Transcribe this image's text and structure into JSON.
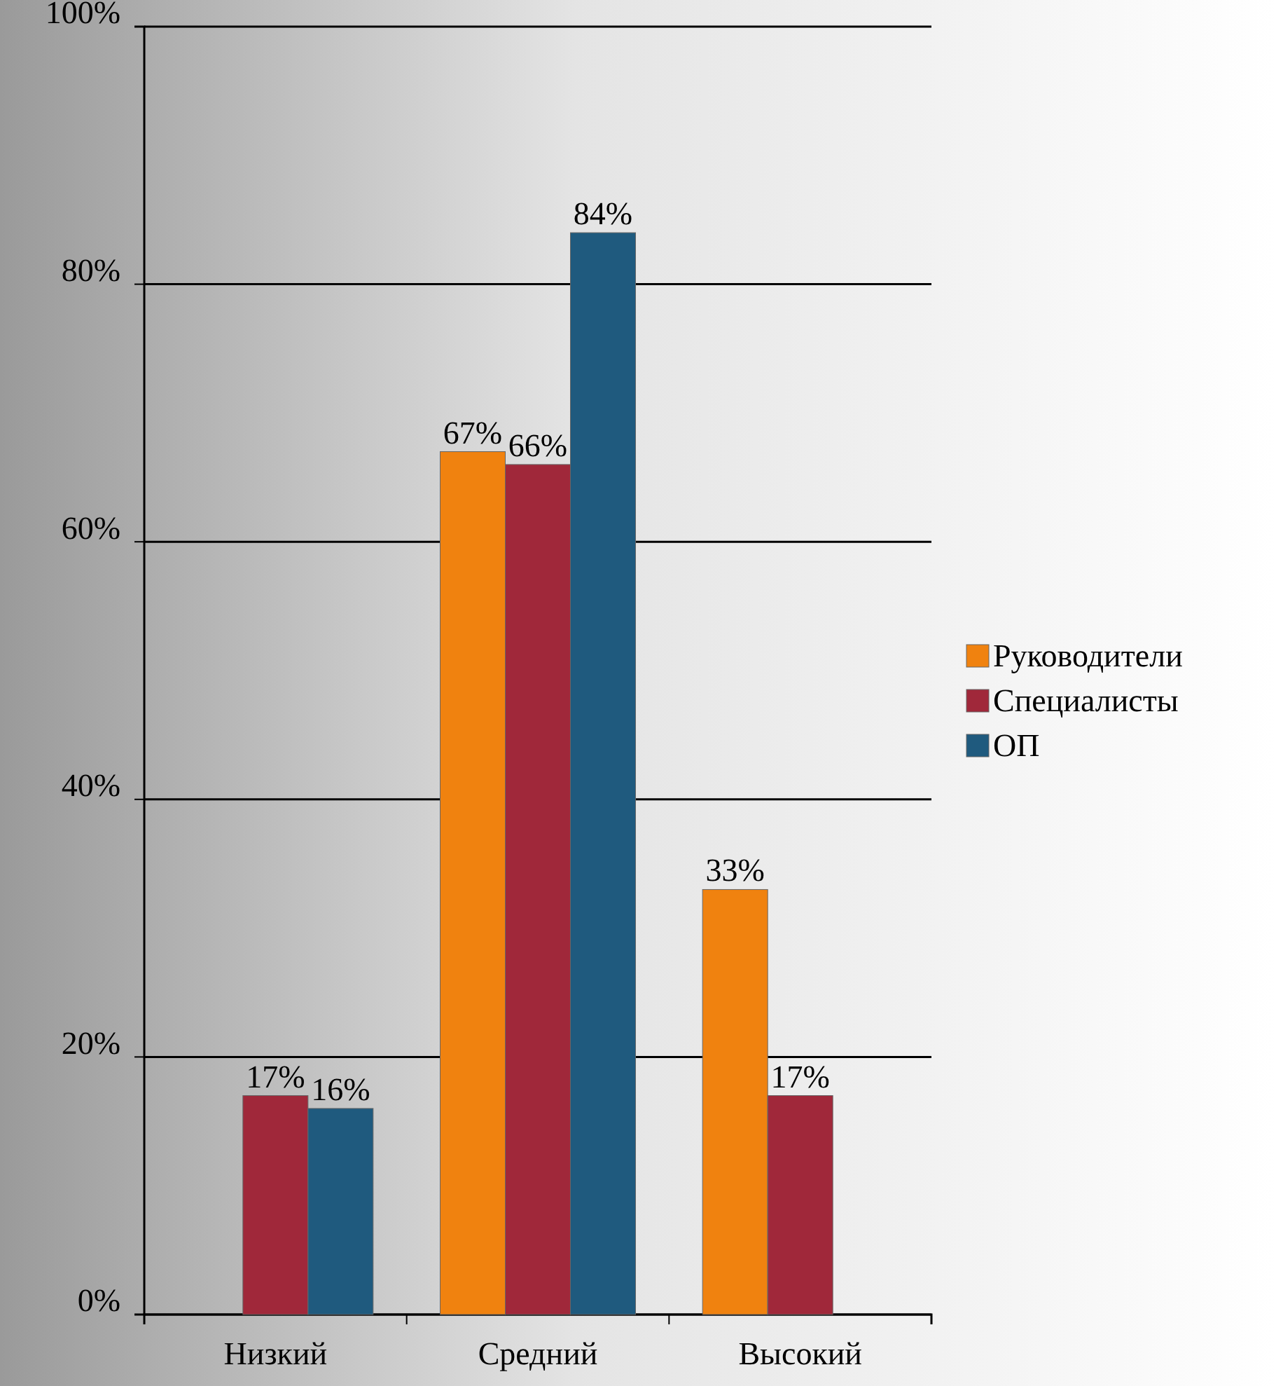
{
  "chart_data": {
    "type": "bar",
    "categories": [
      "Низкий",
      "Средний",
      "Высокий"
    ],
    "series": [
      {
        "name": "Руководители",
        "color": "#f0820f",
        "values": [
          null,
          67,
          33
        ],
        "value_labels": [
          null,
          "67%",
          "33%"
        ]
      },
      {
        "name": "Специалисты",
        "color": "#a0283a",
        "values": [
          17,
          66,
          17
        ],
        "value_labels": [
          "17%",
          "66%",
          "17%"
        ]
      },
      {
        "name": "ОП",
        "color": "#1f5a7e",
        "values": [
          16,
          84,
          null
        ],
        "value_labels": [
          "16%",
          "84%",
          null
        ]
      }
    ],
    "ylim": [
      0,
      100
    ],
    "yticks": [
      {
        "value": 0,
        "label": "0%"
      },
      {
        "value": 20,
        "label": "20%"
      },
      {
        "value": 40,
        "label": "40%"
      },
      {
        "value": 60,
        "label": "60%"
      },
      {
        "value": 80,
        "label": "80%"
      },
      {
        "value": 100,
        "label": "100%"
      }
    ],
    "grid": "y",
    "legend": "right"
  }
}
